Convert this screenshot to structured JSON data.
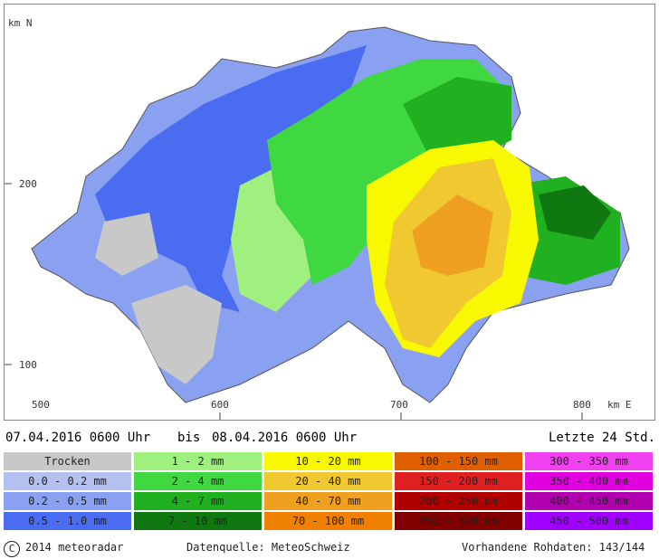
{
  "axes": {
    "y_unit": "km N",
    "x_unit": "km E",
    "y_ticks": [
      "200",
      "100"
    ],
    "x_ticks": [
      "500",
      "600",
      "700",
      "800"
    ]
  },
  "period": {
    "start": "07.04.2016 0600 Uhr",
    "separator": "bis",
    "end": "08.04.2016 0600 Uhr",
    "window": "Letzte 24 Std."
  },
  "legend": [
    {
      "label": "Trocken",
      "color": "#c8c8c8"
    },
    {
      "label": "0.0 - 0.2 mm",
      "color": "#b4c0f0"
    },
    {
      "label": "0.2 - 0.5 mm",
      "color": "#8aa0f0"
    },
    {
      "label": "0.5 - 1.0 mm",
      "color": "#4a6cf0"
    },
    {
      "label": "1 - 2 mm",
      "color": "#a0f080"
    },
    {
      "label": "2 - 4 mm",
      "color": "#40d840"
    },
    {
      "label": "4 - 7 mm",
      "color": "#20b020"
    },
    {
      "label": "7 - 10 mm",
      "color": "#107810"
    },
    {
      "label": "10 - 20 mm",
      "color": "#f8f800"
    },
    {
      "label": "20 - 40 mm",
      "color": "#f0c830"
    },
    {
      "label": "40 - 70 mm",
      "color": "#f0a020"
    },
    {
      "label": "70 - 100 mm",
      "color": "#f08000"
    },
    {
      "label": "100 - 150 mm",
      "color": "#e06000"
    },
    {
      "label": "150 - 200 mm",
      "color": "#e02020"
    },
    {
      "label": "200 - 250 mm",
      "color": "#b00000"
    },
    {
      "label": "250 - 300 mm",
      "color": "#800000"
    },
    {
      "label": "300 - 350 mm",
      "color": "#f040f0"
    },
    {
      "label": "350 - 400 mm",
      "color": "#e000e0"
    },
    {
      "label": "400 - 450 mm",
      "color": "#b000b0"
    },
    {
      "label": "450 - 500 mm",
      "color": "#a000ff"
    }
  ],
  "footer": {
    "copyright_symbol": "C",
    "copyright": "2014 meteoradar",
    "source": "Datenquelle: MeteoSchweiz",
    "availability": "Vorhandene Rohdaten: 143/144"
  }
}
